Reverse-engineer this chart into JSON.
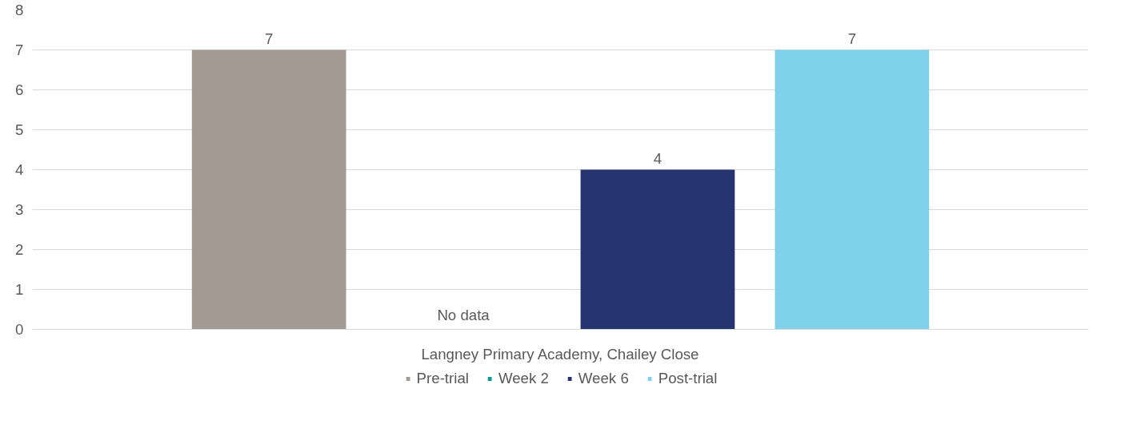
{
  "chart_data": {
    "type": "bar",
    "categories": [
      "Langney Primary Academy, Chailey Close"
    ],
    "series": [
      {
        "name": "Pre-trial",
        "color": "#a39a93",
        "values": [
          7
        ],
        "value_labels": [
          "7"
        ]
      },
      {
        "name": "Week 2",
        "color": "#00999a",
        "values": [
          null
        ],
        "value_labels": [
          "No data"
        ]
      },
      {
        "name": "Week 6",
        "color": "#263571",
        "values": [
          4
        ],
        "value_labels": [
          "4"
        ]
      },
      {
        "name": "Post-trial",
        "color": "#80d2ea",
        "values": [
          7
        ],
        "value_labels": [
          "7"
        ]
      }
    ],
    "ylim": [
      0,
      8
    ],
    "yticks": [
      0,
      1,
      2,
      3,
      4,
      5,
      6,
      7,
      8
    ],
    "grid": "y",
    "legend": "bottom"
  }
}
